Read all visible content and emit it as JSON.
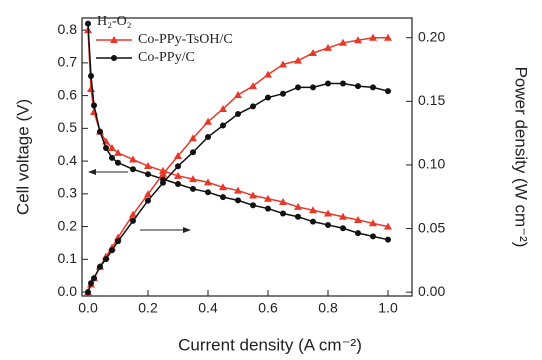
{
  "chart_data": {
    "type": "line",
    "x_label": "Current density (A cm⁻²)",
    "y_label": "Cell voltage (V)",
    "y2_label": "Power density (W cm⁻²)",
    "annotation": "H₂-O₂",
    "x": [
      0,
      0.01,
      0.02,
      0.04,
      0.06,
      0.08,
      0.1,
      0.15,
      0.2,
      0.25,
      0.3,
      0.35,
      0.4,
      0.45,
      0.5,
      0.55,
      0.6,
      0.65,
      0.7,
      0.75,
      0.8,
      0.85,
      0.9,
      0.95,
      1.0
    ],
    "series": [
      {
        "name": "Co-PPy-TsOH/C",
        "color": "#e8382a",
        "marker": "triangle",
        "values": [
          0.8,
          0.62,
          0.55,
          0.49,
          0.46,
          0.44,
          0.425,
          0.405,
          0.385,
          0.37,
          0.355,
          0.345,
          0.335,
          0.32,
          0.31,
          0.295,
          0.285,
          0.275,
          0.26,
          0.25,
          0.24,
          0.23,
          0.22,
          0.21,
          0.2
        ]
      },
      {
        "name": "Co-PPy/C",
        "color": "#111111",
        "marker": "circle",
        "values": [
          0.82,
          0.66,
          0.57,
          0.49,
          0.44,
          0.41,
          0.395,
          0.375,
          0.36,
          0.345,
          0.33,
          0.315,
          0.305,
          0.29,
          0.28,
          0.265,
          0.255,
          0.24,
          0.23,
          0.215,
          0.205,
          0.195,
          0.18,
          0.17,
          0.16
        ]
      },
      {
        "name": "Co-PPy-TsOH/C",
        "color": "#e8382a",
        "marker": "triangle",
        "axis": "y2",
        "values": [
          0,
          0.006,
          0.011,
          0.02,
          0.028,
          0.035,
          0.043,
          0.061,
          0.077,
          0.093,
          0.107,
          0.121,
          0.134,
          0.144,
          0.155,
          0.162,
          0.171,
          0.179,
          0.182,
          0.188,
          0.192,
          0.196,
          0.198,
          0.2,
          0.2
        ]
      },
      {
        "name": "Co-PPy/C",
        "color": "#111111",
        "marker": "circle",
        "axis": "y2",
        "values": [
          0,
          0.007,
          0.011,
          0.02,
          0.026,
          0.033,
          0.04,
          0.056,
          0.072,
          0.086,
          0.099,
          0.11,
          0.122,
          0.131,
          0.14,
          0.146,
          0.153,
          0.156,
          0.161,
          0.161,
          0.164,
          0.164,
          0.162,
          0.161,
          0.158
        ]
      }
    ],
    "xlim": [
      -0.02,
      1.08
    ],
    "xticks": [
      {
        "value": 0,
        "label": "0.0"
      },
      {
        "value": 0.2,
        "label": "0.2"
      },
      {
        "value": 0.4,
        "label": "0.4"
      },
      {
        "value": 0.6,
        "label": "0.6"
      },
      {
        "value": 0.8,
        "label": "0.8"
      },
      {
        "value": 1.0,
        "label": "1.0"
      }
    ],
    "ylim": [
      -0.012,
      0.837
    ],
    "yticks": [
      {
        "value": 0,
        "label": "0.0"
      },
      0.1,
      0.2,
      0.3,
      0.4,
      0.5,
      0.6,
      0.7,
      0.8
    ],
    "y2lim": [
      -0.003,
      0.2155
    ],
    "y2ticks": [
      {
        "value": 0,
        "label": "0.00"
      },
      0.05,
      {
        "value": 0.1,
        "label": "0.10"
      },
      0.15,
      {
        "value": 0.2,
        "label": "0.20"
      }
    ]
  }
}
